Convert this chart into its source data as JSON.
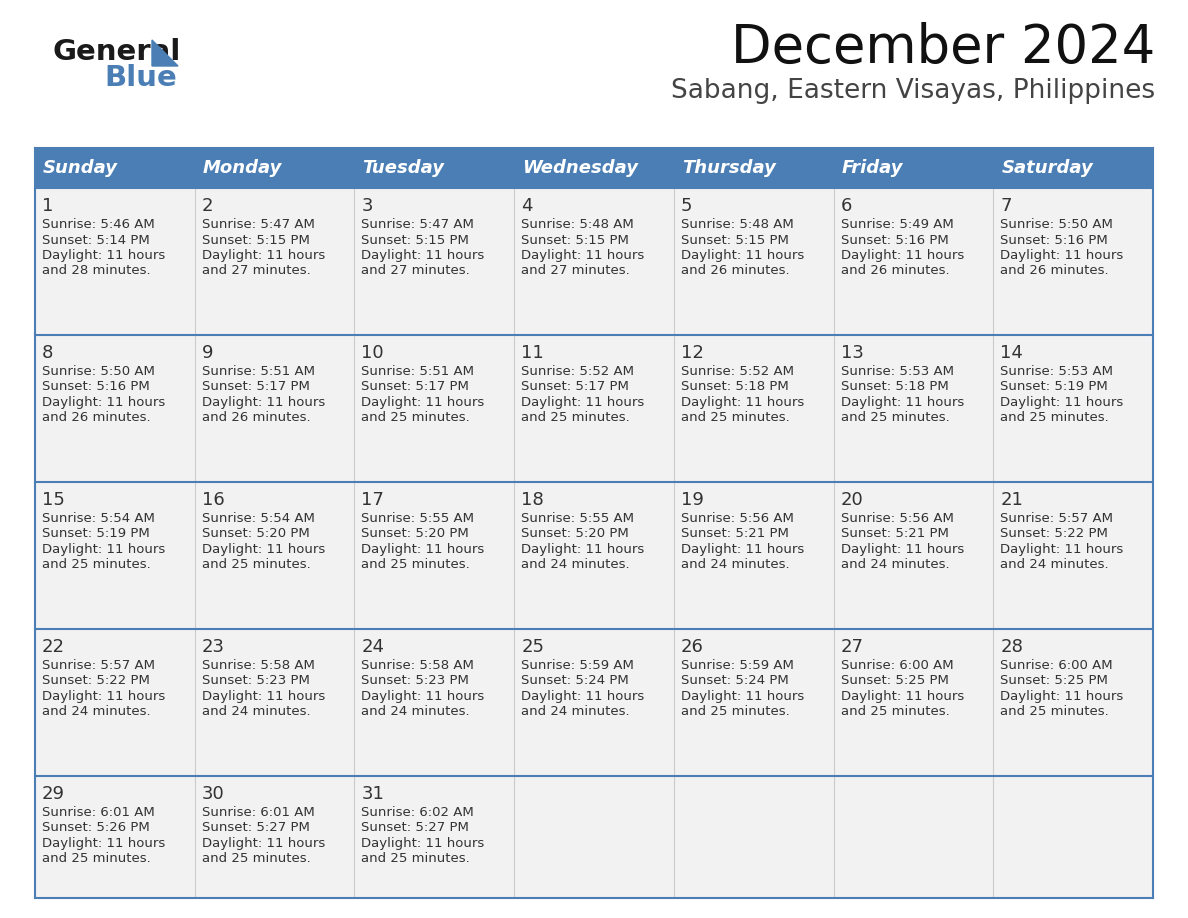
{
  "title": "December 2024",
  "subtitle": "Sabang, Eastern Visayas, Philippines",
  "days_of_week": [
    "Sunday",
    "Monday",
    "Tuesday",
    "Wednesday",
    "Thursday",
    "Friday",
    "Saturday"
  ],
  "header_bg": "#4a7eb5",
  "header_text": "#ffffff",
  "row_bg": "#f2f2f2",
  "cell_border_color": "#4a7eb5",
  "row_border_color": "#4a7eb5",
  "vert_border_color": "#cccccc",
  "text_color": "#333333",
  "calendar_data": [
    [
      {
        "day": 1,
        "sunrise": "5:46 AM",
        "sunset": "5:14 PM",
        "daylight": "11 hours and 28 minutes"
      },
      {
        "day": 2,
        "sunrise": "5:47 AM",
        "sunset": "5:15 PM",
        "daylight": "11 hours and 27 minutes"
      },
      {
        "day": 3,
        "sunrise": "5:47 AM",
        "sunset": "5:15 PM",
        "daylight": "11 hours and 27 minutes"
      },
      {
        "day": 4,
        "sunrise": "5:48 AM",
        "sunset": "5:15 PM",
        "daylight": "11 hours and 27 minutes"
      },
      {
        "day": 5,
        "sunrise": "5:48 AM",
        "sunset": "5:15 PM",
        "daylight": "11 hours and 26 minutes"
      },
      {
        "day": 6,
        "sunrise": "5:49 AM",
        "sunset": "5:16 PM",
        "daylight": "11 hours and 26 minutes"
      },
      {
        "day": 7,
        "sunrise": "5:50 AM",
        "sunset": "5:16 PM",
        "daylight": "11 hours and 26 minutes"
      }
    ],
    [
      {
        "day": 8,
        "sunrise": "5:50 AM",
        "sunset": "5:16 PM",
        "daylight": "11 hours and 26 minutes"
      },
      {
        "day": 9,
        "sunrise": "5:51 AM",
        "sunset": "5:17 PM",
        "daylight": "11 hours and 26 minutes"
      },
      {
        "day": 10,
        "sunrise": "5:51 AM",
        "sunset": "5:17 PM",
        "daylight": "11 hours and 25 minutes"
      },
      {
        "day": 11,
        "sunrise": "5:52 AM",
        "sunset": "5:17 PM",
        "daylight": "11 hours and 25 minutes"
      },
      {
        "day": 12,
        "sunrise": "5:52 AM",
        "sunset": "5:18 PM",
        "daylight": "11 hours and 25 minutes"
      },
      {
        "day": 13,
        "sunrise": "5:53 AM",
        "sunset": "5:18 PM",
        "daylight": "11 hours and 25 minutes"
      },
      {
        "day": 14,
        "sunrise": "5:53 AM",
        "sunset": "5:19 PM",
        "daylight": "11 hours and 25 minutes"
      }
    ],
    [
      {
        "day": 15,
        "sunrise": "5:54 AM",
        "sunset": "5:19 PM",
        "daylight": "11 hours and 25 minutes"
      },
      {
        "day": 16,
        "sunrise": "5:54 AM",
        "sunset": "5:20 PM",
        "daylight": "11 hours and 25 minutes"
      },
      {
        "day": 17,
        "sunrise": "5:55 AM",
        "sunset": "5:20 PM",
        "daylight": "11 hours and 25 minutes"
      },
      {
        "day": 18,
        "sunrise": "5:55 AM",
        "sunset": "5:20 PM",
        "daylight": "11 hours and 24 minutes"
      },
      {
        "day": 19,
        "sunrise": "5:56 AM",
        "sunset": "5:21 PM",
        "daylight": "11 hours and 24 minutes"
      },
      {
        "day": 20,
        "sunrise": "5:56 AM",
        "sunset": "5:21 PM",
        "daylight": "11 hours and 24 minutes"
      },
      {
        "day": 21,
        "sunrise": "5:57 AM",
        "sunset": "5:22 PM",
        "daylight": "11 hours and 24 minutes"
      }
    ],
    [
      {
        "day": 22,
        "sunrise": "5:57 AM",
        "sunset": "5:22 PM",
        "daylight": "11 hours and 24 minutes"
      },
      {
        "day": 23,
        "sunrise": "5:58 AM",
        "sunset": "5:23 PM",
        "daylight": "11 hours and 24 minutes"
      },
      {
        "day": 24,
        "sunrise": "5:58 AM",
        "sunset": "5:23 PM",
        "daylight": "11 hours and 24 minutes"
      },
      {
        "day": 25,
        "sunrise": "5:59 AM",
        "sunset": "5:24 PM",
        "daylight": "11 hours and 24 minutes"
      },
      {
        "day": 26,
        "sunrise": "5:59 AM",
        "sunset": "5:24 PM",
        "daylight": "11 hours and 25 minutes"
      },
      {
        "day": 27,
        "sunrise": "6:00 AM",
        "sunset": "5:25 PM",
        "daylight": "11 hours and 25 minutes"
      },
      {
        "day": 28,
        "sunrise": "6:00 AM",
        "sunset": "5:25 PM",
        "daylight": "11 hours and 25 minutes"
      }
    ],
    [
      {
        "day": 29,
        "sunrise": "6:01 AM",
        "sunset": "5:26 PM",
        "daylight": "11 hours and 25 minutes"
      },
      {
        "day": 30,
        "sunrise": "6:01 AM",
        "sunset": "5:27 PM",
        "daylight": "11 hours and 25 minutes"
      },
      {
        "day": 31,
        "sunrise": "6:02 AM",
        "sunset": "5:27 PM",
        "daylight": "11 hours and 25 minutes"
      },
      null,
      null,
      null,
      null
    ]
  ],
  "logo_color_general": "#1a1a1a",
  "logo_color_blue": "#4a7eb5",
  "title_fontsize": 38,
  "subtitle_fontsize": 19,
  "header_fontsize": 13,
  "day_num_fontsize": 13,
  "cell_text_fontsize": 9.5
}
